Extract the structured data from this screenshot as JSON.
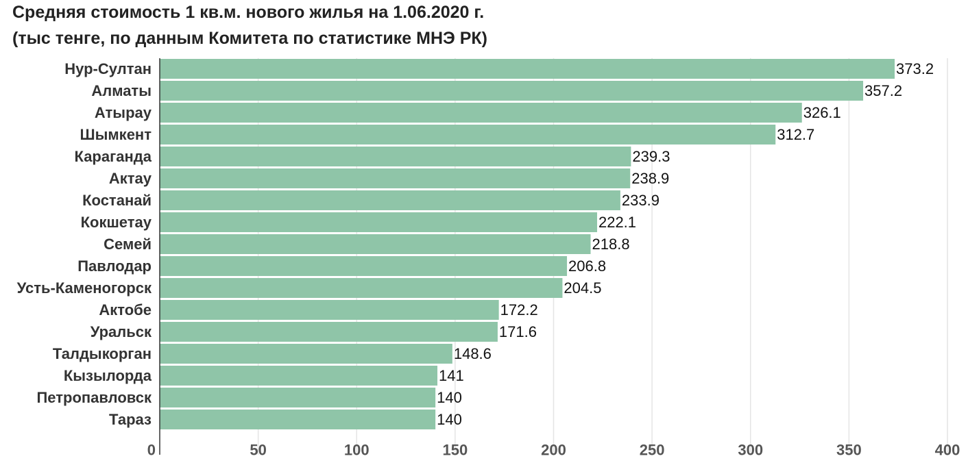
{
  "chart_data": {
    "type": "bar",
    "orientation": "horizontal",
    "title": "Средняя стоимость 1 кв.м. нового жилья на 1.06.2020 г.",
    "subtitle": "(тыс тенге, по данным Комитета по статистике МНЭ РК)",
    "xlabel": "",
    "ylabel": "",
    "categories": [
      "Нур-Султан",
      "Алматы",
      "Атырау",
      "Шымкент",
      "Караганда",
      "Актау",
      "Костанай",
      "Кокшетау",
      "Семей",
      "Павлодар",
      "Усть-Каменогорск",
      "Актобе",
      "Уральск",
      "Талдыкорган",
      "Кызылорда",
      "Петропавловск",
      "Тараз"
    ],
    "values": [
      373.2,
      357.2,
      326.1,
      312.7,
      239.3,
      238.9,
      233.9,
      222.1,
      218.8,
      206.8,
      204.5,
      172.2,
      171.6,
      148.6,
      141,
      140,
      140
    ],
    "value_labels": [
      "373.2",
      "357.2",
      "326.1",
      "312.7",
      "239.3",
      "238.9",
      "233.9",
      "222.1",
      "218.8",
      "206.8",
      "204.5",
      "172.2",
      "171.6",
      "148.6",
      "141",
      "140",
      "140"
    ],
    "xlim": [
      0,
      400
    ],
    "xticks": [
      "0",
      "50",
      "100",
      "150",
      "200",
      "250",
      "300",
      "350",
      "400"
    ],
    "tick_values": [
      0,
      50,
      100,
      150,
      200,
      250,
      300,
      350,
      400
    ],
    "grid": "vertical",
    "legend": "none",
    "bar_color": "#8fc5a8",
    "grid_color": "#e4e4e4",
    "axis_color": "#333333"
  }
}
